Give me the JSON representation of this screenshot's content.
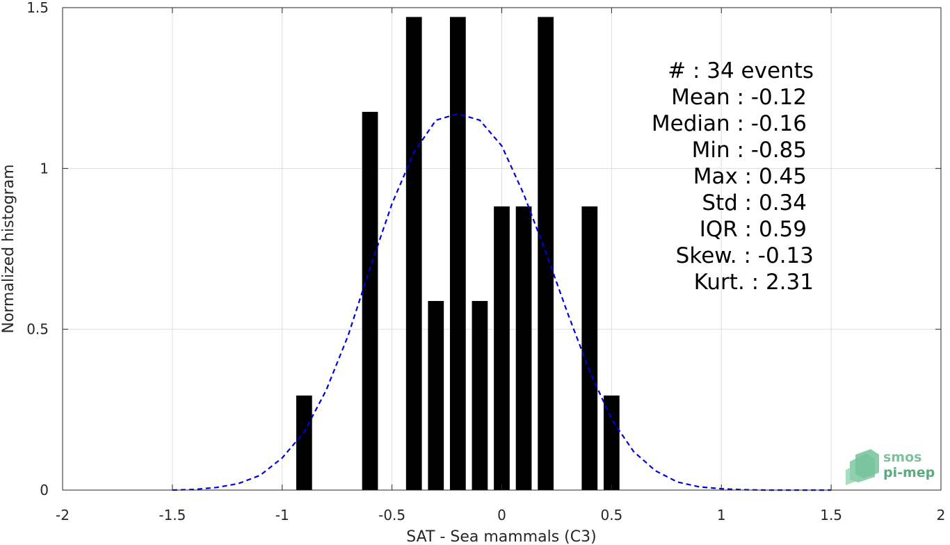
{
  "chart_data": {
    "type": "bar",
    "title": "",
    "xlabel": "SAT - Sea mammals (C3)",
    "ylabel": "Normalized histogram",
    "xlim": [
      -2,
      2
    ],
    "ylim": [
      0,
      1.5
    ],
    "x_ticks": [
      -2,
      -1.5,
      -1,
      -0.5,
      0,
      0.5,
      1,
      1.5,
      2
    ],
    "x_tick_labels": [
      "-2",
      "-1.5",
      "-1",
      "-0.5",
      "0",
      "0.5",
      "1",
      "1.5",
      "2"
    ],
    "y_ticks": [
      0,
      0.5,
      1,
      1.5
    ],
    "y_tick_labels": [
      "0",
      "0.5",
      "1",
      "1.5"
    ],
    "grid": true,
    "bin_width": 0.1,
    "bars": {
      "color": "#000000",
      "x": [
        -0.9,
        -0.6,
        -0.4,
        -0.3,
        -0.2,
        -0.1,
        0.0,
        0.1,
        0.2,
        0.4,
        0.5
      ],
      "values": [
        0.294,
        1.176,
        1.471,
        0.588,
        1.471,
        0.588,
        0.882,
        0.882,
        1.471,
        0.882,
        0.294
      ]
    },
    "fit_curve": {
      "style": "dashed",
      "color": "#0000dd",
      "x": [
        -1.5,
        -1.4,
        -1.3,
        -1.2,
        -1.1,
        -1.0,
        -0.9,
        -0.8,
        -0.7,
        -0.6,
        -0.5,
        -0.4,
        -0.3,
        -0.2,
        -0.1,
        0.0,
        0.1,
        0.2,
        0.3,
        0.4,
        0.5,
        0.6,
        0.7,
        0.8,
        0.9,
        1.0,
        1.1,
        1.2,
        1.3,
        1.4,
        1.5
      ],
      "y": [
        0.0,
        0.002,
        0.008,
        0.02,
        0.046,
        0.1,
        0.18,
        0.31,
        0.48,
        0.69,
        0.89,
        1.05,
        1.15,
        1.17,
        1.15,
        1.07,
        0.92,
        0.74,
        0.55,
        0.37,
        0.22,
        0.12,
        0.06,
        0.025,
        0.01,
        0.004,
        0.001,
        0.0,
        0.0,
        0.0,
        0.0
      ]
    },
    "annotations": [
      "#  : 34 events",
      "Mean : -0.12",
      "Median : -0.16",
      "Min : -0.85",
      "Max : 0.45",
      "Std : 0.34",
      "IQR : 0.59",
      "Skew. : -0.13",
      "Kurt. : 2.31"
    ]
  },
  "logo": {
    "line1": "smos",
    "line2": "pi-mep",
    "color": "#7cc39a"
  }
}
